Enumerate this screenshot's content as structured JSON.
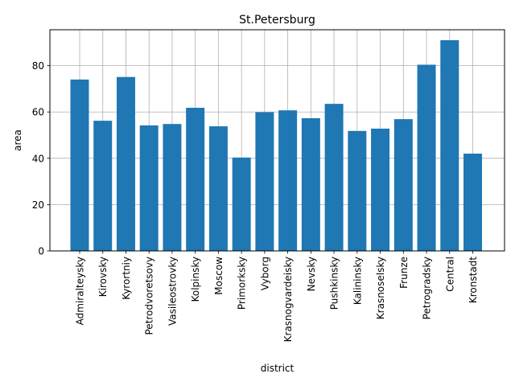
{
  "chart_data": {
    "type": "bar",
    "title": "St.Petersburg",
    "xlabel": "district",
    "ylabel": "area",
    "categories": [
      "Admiralteysky",
      "Kirovsky",
      "Kyrortniy",
      "Petrodvoretsovy",
      "Vasileostrovky",
      "Kolpinsky",
      "Moscow",
      "Primorksky",
      "Vyborg",
      "Krasnogvardeisky",
      "Nevsky",
      "Pushkinsky",
      "Kalininsky",
      "Krasnoselsky",
      "Frunze",
      "Petrogradsky",
      "Central",
      "Kronstadt"
    ],
    "values": [
      74,
      56.2,
      75.1,
      54.2,
      54.8,
      61.8,
      53.8,
      40.3,
      59.9,
      60.7,
      57.3,
      63.5,
      51.8,
      52.8,
      56.9,
      80.4,
      91,
      42
    ],
    "ylim": [
      0,
      95.5
    ],
    "yticks": [
      0,
      20,
      40,
      60,
      80
    ],
    "grid": true,
    "bar_color": "#1f77b4"
  }
}
